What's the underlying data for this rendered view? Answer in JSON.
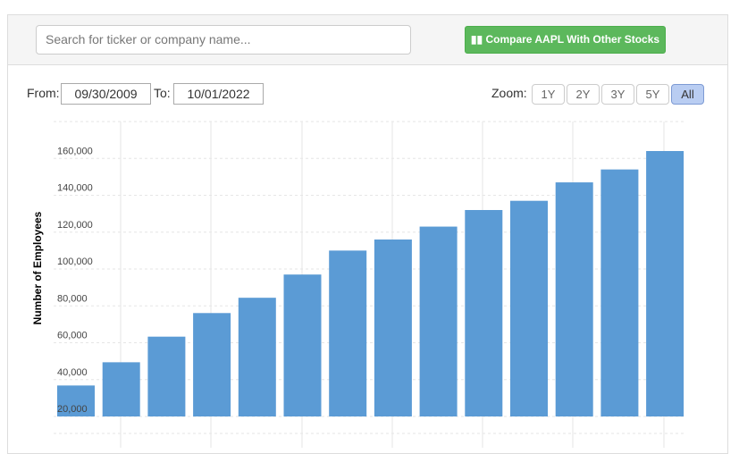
{
  "search": {
    "placeholder": "Search for ticker or company name..."
  },
  "compare_button": "Compare AAPL With Other Stocks",
  "range": {
    "from_label": "From:",
    "from": "09/30/2009",
    "to_label": "To:",
    "to": "10/01/2022"
  },
  "zoom": {
    "label": "Zoom:",
    "options": [
      "1Y",
      "2Y",
      "3Y",
      "5Y",
      "All"
    ],
    "active": 4
  },
  "chart_data": {
    "type": "bar",
    "y_label": "Number of Employees",
    "color": "#5b9bd5",
    "values": [
      36800,
      49400,
      63300,
      76100,
      84400,
      97000,
      110000,
      116000,
      123000,
      132000,
      137000,
      147000,
      154000,
      164000
    ],
    "ylim": [
      20000,
      180000
    ],
    "yticks": [
      {
        "value": 20000,
        "label": "20,000"
      },
      {
        "value": 40000,
        "label": "40,000"
      },
      {
        "value": 60000,
        "label": "60,000"
      },
      {
        "value": 80000,
        "label": "80,000"
      },
      {
        "value": 100000,
        "label": "100,000"
      },
      {
        "value": 120000,
        "label": "120,000"
      },
      {
        "value": 140000,
        "label": "140,000"
      },
      {
        "value": 160000,
        "label": "160,000"
      }
    ],
    "grid": true
  }
}
